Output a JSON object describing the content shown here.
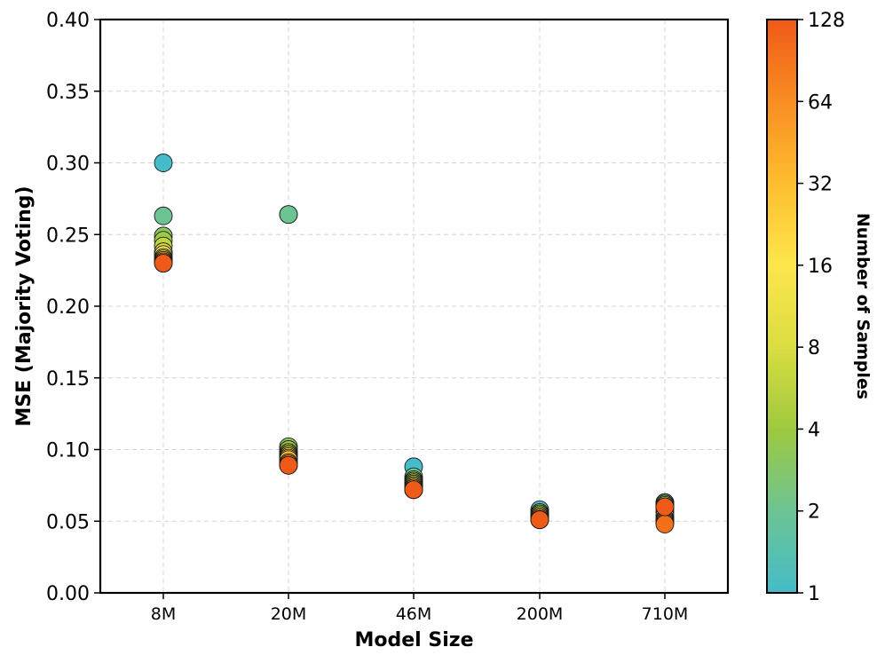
{
  "chart_data": {
    "type": "scatter",
    "xlabel": "Model Size",
    "ylabel": "MSE (Majority Voting)",
    "categories": [
      "8M",
      "20M",
      "46M",
      "200M",
      "710M"
    ],
    "ylim": [
      0,
      0.4
    ],
    "yticks": [
      "0.00",
      "0.05",
      "0.10",
      "0.15",
      "0.20",
      "0.25",
      "0.30",
      "0.35",
      "0.40"
    ],
    "grid": true,
    "colorbar": {
      "label": "Number of Samples",
      "scale": "log2",
      "range": [
        1,
        128
      ],
      "ticks": [
        "1",
        "2",
        "4",
        "8",
        "16",
        "32",
        "64",
        "128"
      ],
      "colors": [
        "#45bcc9",
        "#6dc493",
        "#9ec93f",
        "#dadd41",
        "#fde64c",
        "#fdbe2e",
        "#f98d22",
        "#f05a18"
      ]
    },
    "series": [
      {
        "samples": 1,
        "values": [
          0.3,
          0.264,
          0.088,
          0.058,
          0.063
        ]
      },
      {
        "samples": 2,
        "values": [
          0.263,
          0.264,
          0.081,
          0.056,
          0.063
        ]
      },
      {
        "samples": 3,
        "values": [
          0.249,
          0.102,
          0.079,
          0.056,
          0.062
        ]
      },
      {
        "samples": 4,
        "values": [
          0.246,
          0.1,
          0.078,
          0.055,
          0.061
        ]
      },
      {
        "samples": 6,
        "values": [
          0.242,
          0.098,
          0.077,
          0.055,
          0.06
        ]
      },
      {
        "samples": 8,
        "values": [
          0.238,
          0.097,
          0.076,
          0.054,
          0.058
        ]
      },
      {
        "samples": 12,
        "values": [
          0.236,
          0.096,
          0.075,
          0.054,
          0.056
        ]
      },
      {
        "samples": 16,
        "values": [
          0.234,
          0.095,
          0.074,
          0.053,
          0.054
        ]
      },
      {
        "samples": 24,
        "values": [
          0.233,
          0.094,
          0.073,
          0.053,
          0.052
        ]
      },
      {
        "samples": 32,
        "values": [
          0.232,
          0.093,
          0.073,
          0.052,
          0.051
        ]
      },
      {
        "samples": 48,
        "values": [
          0.231,
          0.091,
          0.072,
          0.052,
          0.05
        ]
      },
      {
        "samples": 64,
        "values": [
          0.231,
          0.09,
          0.072,
          0.051,
          0.049
        ]
      },
      {
        "samples": 96,
        "values": [
          0.23,
          0.089,
          0.072,
          0.051,
          0.048
        ]
      },
      {
        "samples": 128,
        "values": [
          0.23,
          0.089,
          0.072,
          0.051,
          0.06
        ]
      }
    ]
  }
}
